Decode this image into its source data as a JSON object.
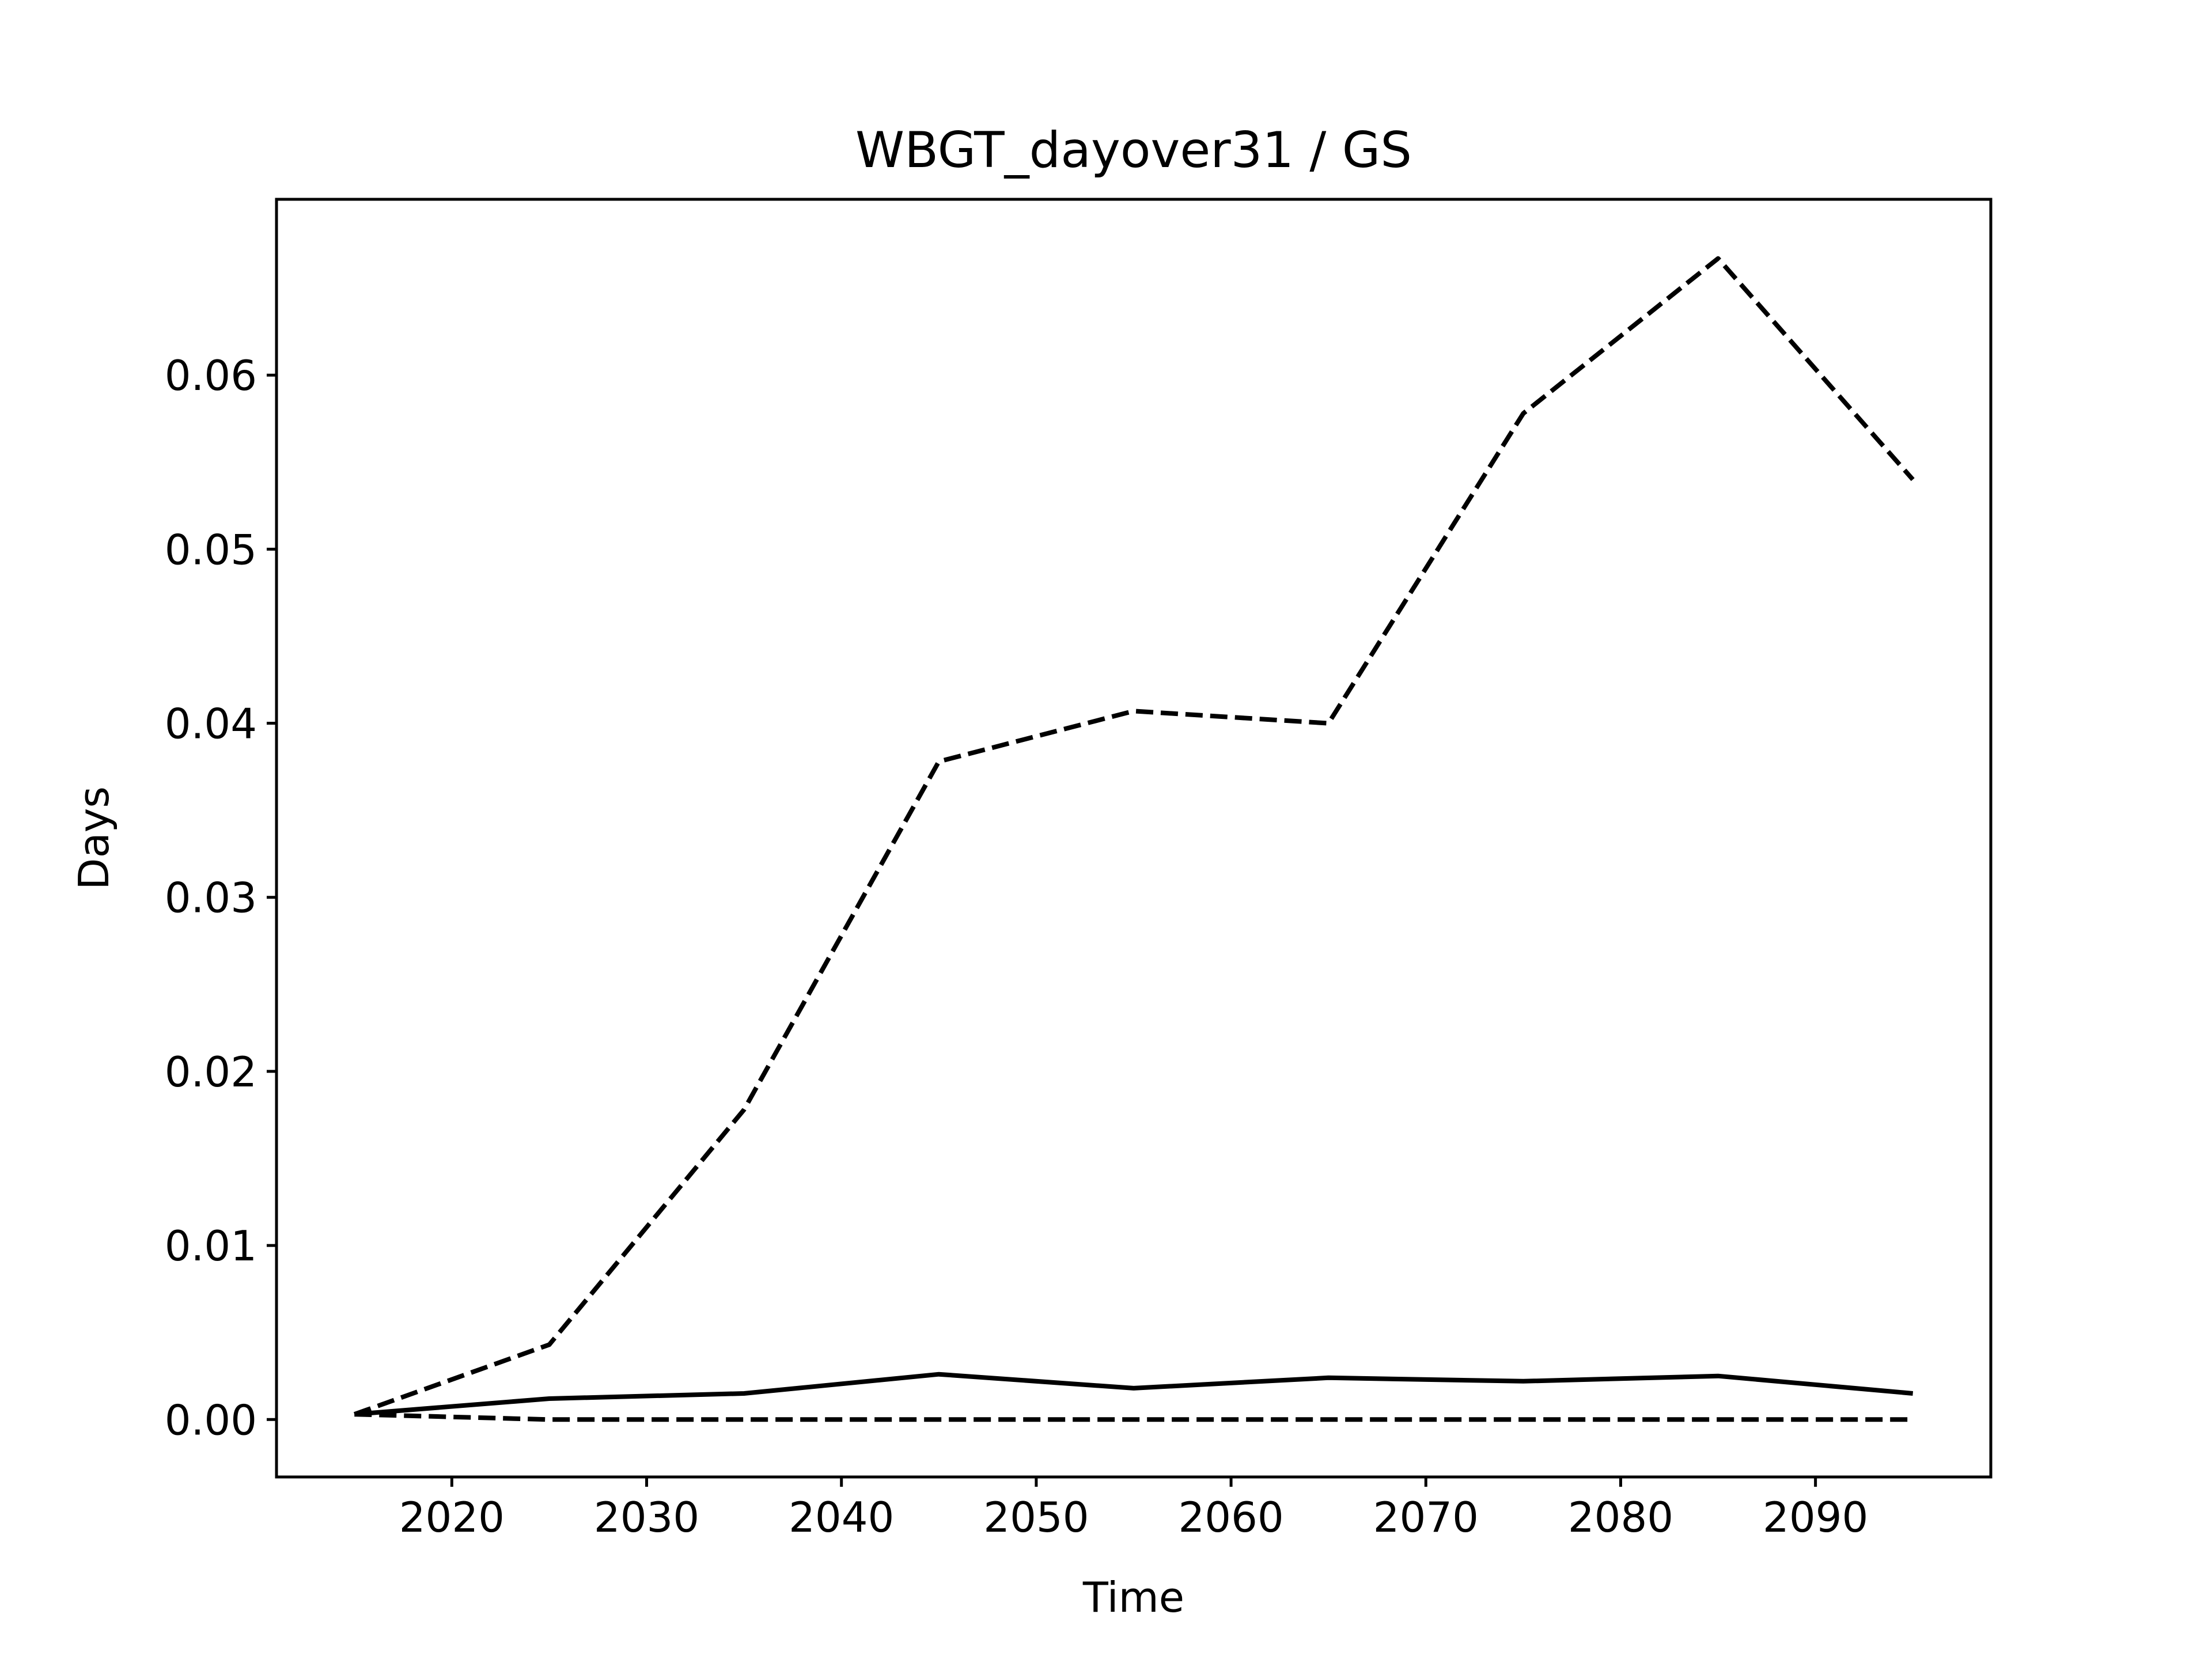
{
  "chart_data": {
    "type": "line",
    "title": "WBGT_dayover31 / GS",
    "xlabel": "Time",
    "ylabel": "Days",
    "xlim": [
      2011,
      2099
    ],
    "ylim": [
      -0.0033,
      0.0701
    ],
    "x_ticks": [
      2020,
      2030,
      2040,
      2050,
      2060,
      2070,
      2080,
      2090
    ],
    "y_ticks": [
      0.0,
      0.01,
      0.02,
      0.03,
      0.04,
      0.05,
      0.06
    ],
    "y_tick_labels": [
      "0.00",
      "0.01",
      "0.02",
      "0.03",
      "0.04",
      "0.05",
      "0.06"
    ],
    "x": [
      2015,
      2025,
      2035,
      2045,
      2055,
      2065,
      2075,
      2085,
      2095
    ],
    "grid": false,
    "legend": "none",
    "series": [
      {
        "style": "solid",
        "color": "#000000",
        "values": [
          0.0003,
          0.0012,
          0.0015,
          0.0026,
          0.0018,
          0.0024,
          0.0022,
          0.0025,
          0.0015
        ]
      },
      {
        "style": "dashed",
        "color": "#000000",
        "values": [
          0.0003,
          0.0043,
          0.0178,
          0.0378,
          0.0407,
          0.04,
          0.0578,
          0.0667,
          0.054
        ]
      },
      {
        "style": "dashed",
        "color": "#000000",
        "values": [
          0.0003,
          0.0,
          0.0,
          0.0,
          0.0,
          0.0,
          0.0,
          0.0,
          0.0
        ]
      }
    ]
  }
}
